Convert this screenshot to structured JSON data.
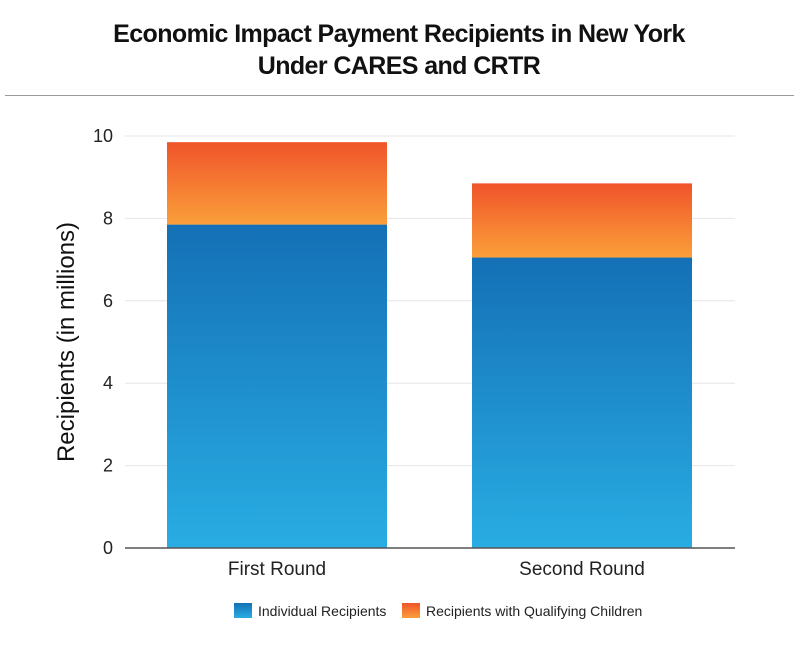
{
  "title_lines": [
    "Economic Impact Payment Recipients in New York",
    "Under CARES and CRTR"
  ],
  "colors": {
    "individual_top": "#1470b6",
    "individual_bottom": "#29ade3",
    "children_top": "#f0542a",
    "children_bottom": "#fa9f3a",
    "grid": "#e6e6e6",
    "axis": "#555555"
  },
  "chart_data": {
    "type": "bar",
    "stacked": true,
    "title": "Economic Impact Payment Recipients in New York Under CARES and CRTR",
    "xlabel": "",
    "ylabel": "Recipients (in millions)",
    "ylim": [
      0,
      10
    ],
    "yticks": [
      0,
      2,
      4,
      6,
      8,
      10
    ],
    "grid": true,
    "legend_position": "bottom",
    "categories": [
      "First Round",
      "Second Round"
    ],
    "series": [
      {
        "name": "Individual Recipients",
        "values": [
          7.85,
          7.05
        ]
      },
      {
        "name": "Recipients with Qualifying Children",
        "values": [
          2.0,
          1.8
        ]
      }
    ]
  }
}
